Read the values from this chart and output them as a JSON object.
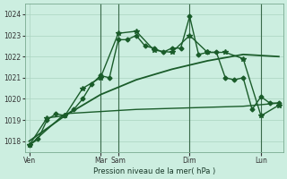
{
  "bg_color": "#cceee0",
  "grid_color": "#aad4c0",
  "line_color": "#1a5c2a",
  "title": "Pression niveau de la mer( hPa )",
  "ylim": [
    1017.5,
    1024.5
  ],
  "yticks": [
    1018,
    1019,
    1020,
    1021,
    1022,
    1023,
    1024
  ],
  "xlim": [
    -0.5,
    28.5
  ],
  "xtick_positions": [
    0,
    8,
    10,
    18,
    26
  ],
  "xtick_labels": [
    "Ven",
    "Mar",
    "Sam",
    "Dim",
    "Lun"
  ],
  "vline_positions": [
    8,
    10,
    18,
    26
  ],
  "series": [
    {
      "x": [
        0,
        1,
        2,
        3,
        4,
        5,
        6,
        7,
        8,
        9,
        10,
        11,
        12,
        13,
        14,
        15,
        16,
        17,
        18,
        19,
        20,
        21,
        22,
        23,
        24,
        25,
        26,
        27,
        28
      ],
      "y": [
        1017.8,
        1018.1,
        1019.0,
        1019.3,
        1019.2,
        1019.5,
        1020.0,
        1020.7,
        1021.1,
        1021.0,
        1022.8,
        1022.8,
        1023.0,
        1022.5,
        1022.4,
        1022.2,
        1022.4,
        1022.4,
        1023.9,
        1022.1,
        1022.2,
        1022.2,
        1021.0,
        1020.9,
        1021.0,
        1019.5,
        1020.1,
        1019.8,
        1019.8
      ],
      "marker": "D",
      "ms": 2.5,
      "lw": 1.0
    },
    {
      "x": [
        0,
        2,
        4,
        6,
        8,
        10,
        12,
        14,
        16,
        18,
        20,
        22,
        24,
        26,
        28
      ],
      "y": [
        1017.8,
        1019.1,
        1019.2,
        1020.5,
        1021.0,
        1023.1,
        1023.2,
        1022.3,
        1022.2,
        1023.0,
        1022.2,
        1022.2,
        1021.9,
        1019.2,
        1019.7
      ],
      "marker": "*",
      "ms": 4,
      "lw": 1.0
    },
    {
      "x": [
        0,
        4,
        8,
        12,
        16,
        20,
        24,
        28
      ],
      "y": [
        1018.0,
        1019.2,
        1020.2,
        1020.9,
        1021.4,
        1021.8,
        1022.1,
        1022.0
      ],
      "marker": null,
      "ms": 0,
      "lw": 1.3
    },
    {
      "x": [
        0,
        4,
        8,
        12,
        16,
        20,
        24,
        28
      ],
      "y": [
        1017.8,
        1019.3,
        1019.4,
        1019.5,
        1019.55,
        1019.6,
        1019.65,
        1019.8
      ],
      "marker": null,
      "ms": 0,
      "lw": 1.0
    }
  ]
}
